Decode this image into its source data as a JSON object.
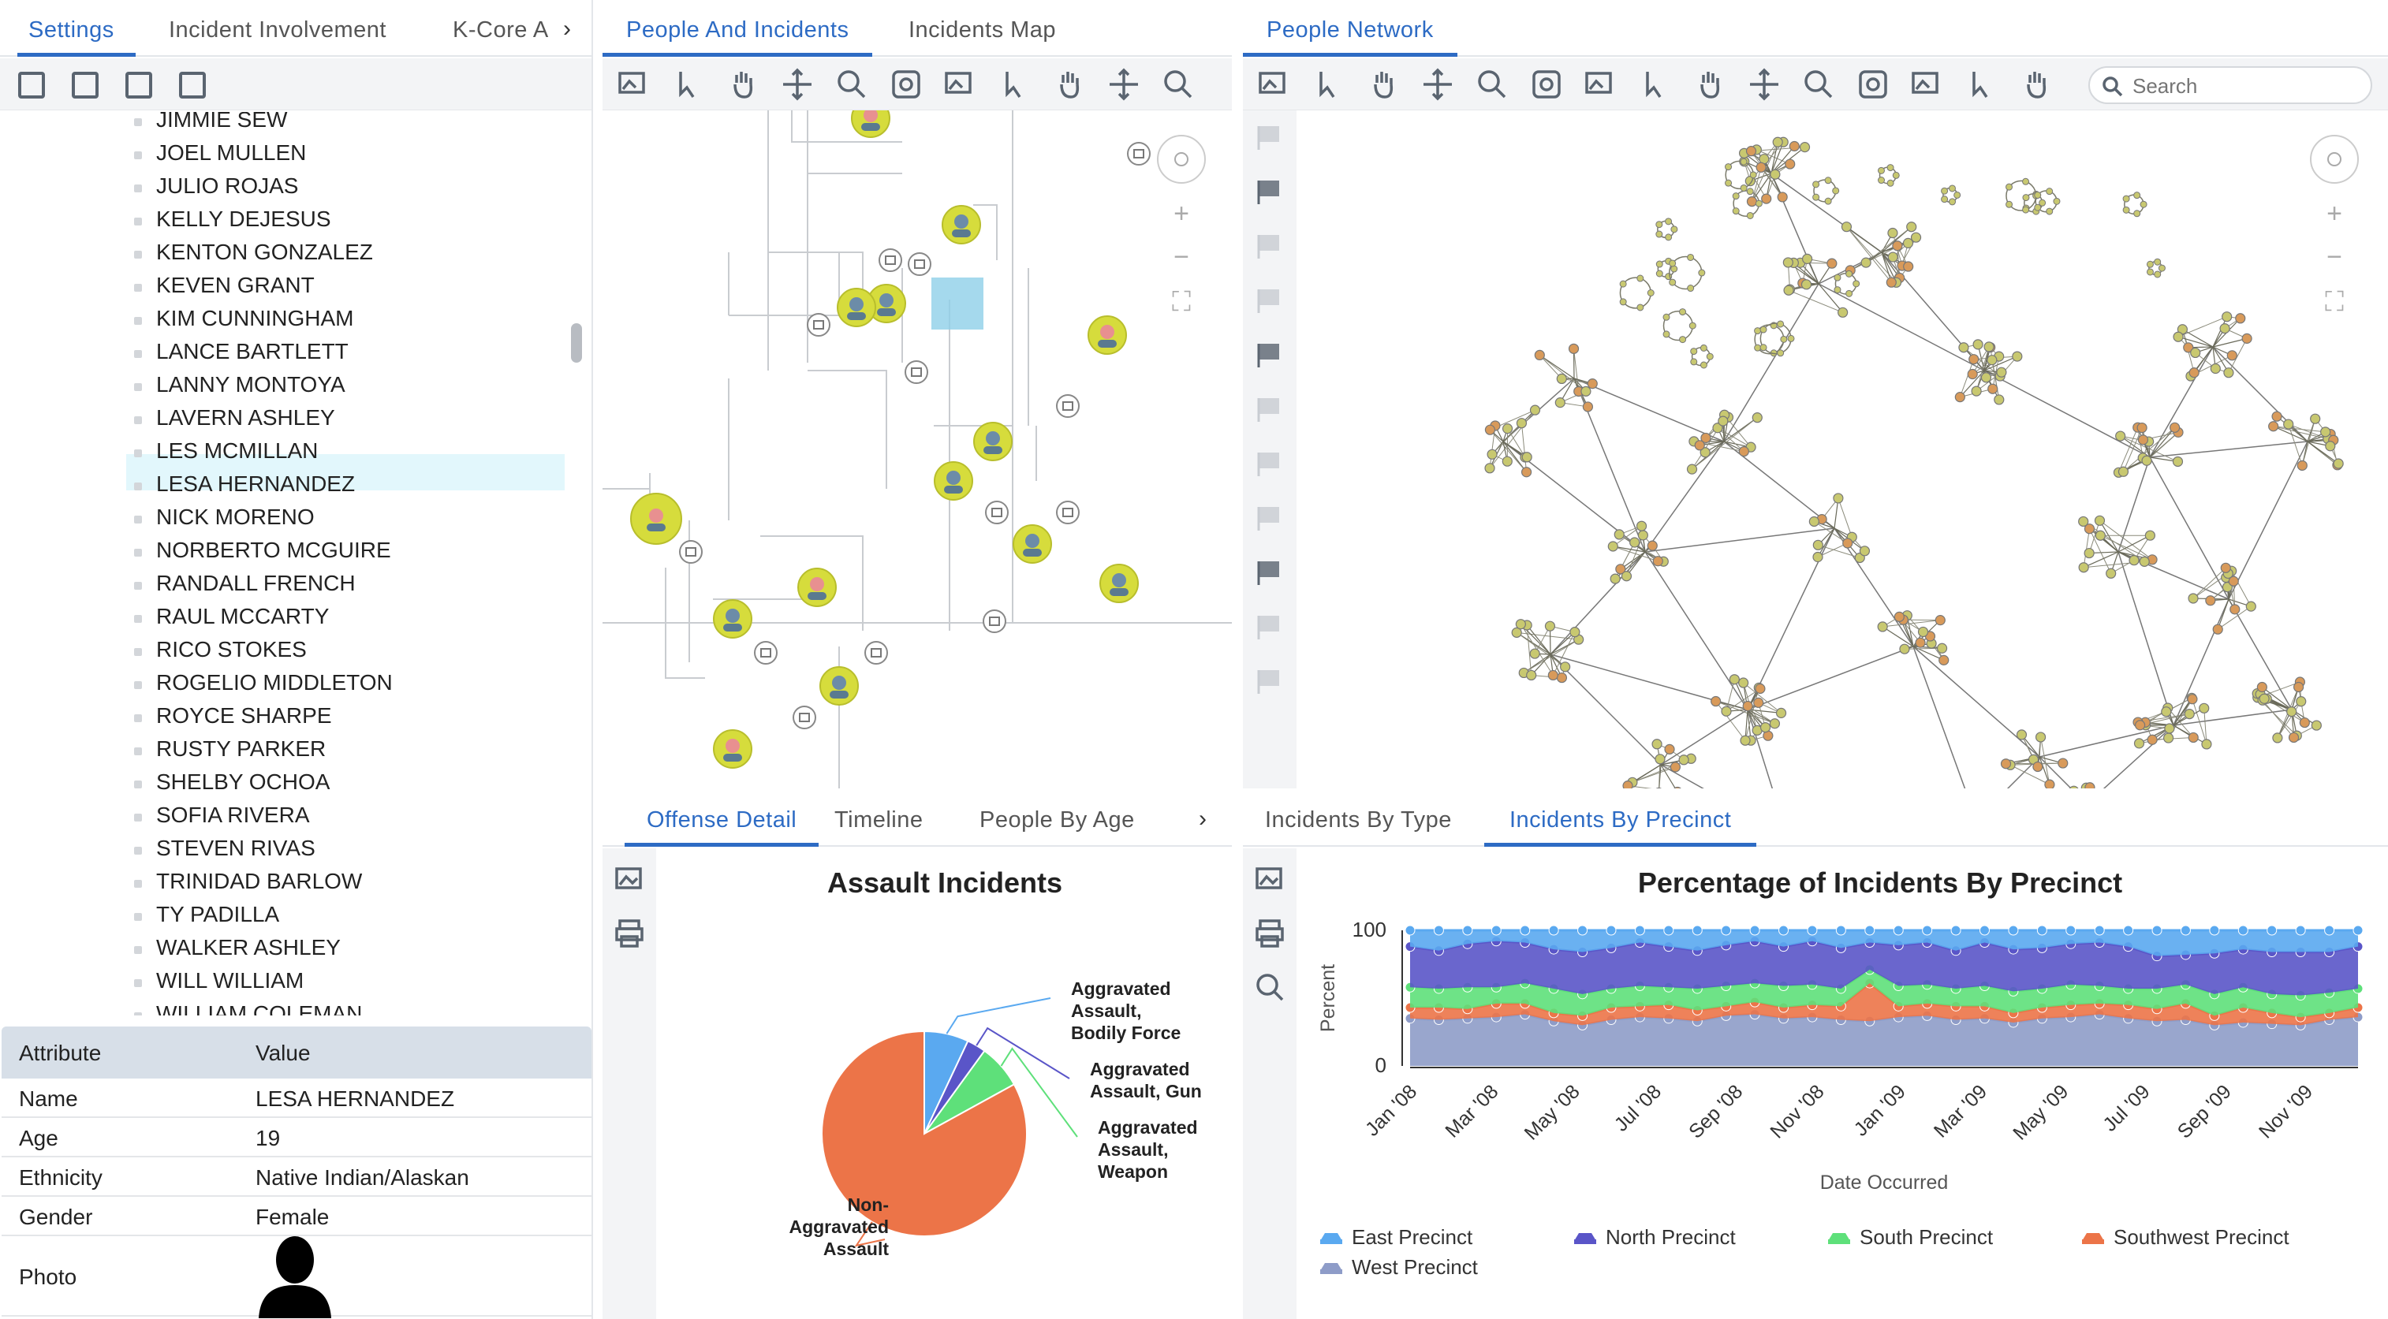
{
  "left_panel": {
    "tabs": [
      {
        "label": "Settings",
        "active": true
      },
      {
        "label": "Incident Involvement"
      },
      {
        "label": "K-Core A"
      }
    ],
    "people": [
      "JIMMIE SEW",
      "JOEL MULLEN",
      "JULIO ROJAS",
      "KELLY DEJESUS",
      "KENTON GONZALEZ",
      "KEVEN GRANT",
      "KIM CUNNINGHAM",
      "LANCE BARTLETT",
      "LANNY MONTOYA",
      "LAVERN ASHLEY",
      "LES MCMILLAN",
      "LESA HERNANDEZ",
      "NICK MORENO",
      "NORBERTO MCGUIRE",
      "RANDALL FRENCH",
      "RAUL MCCARTY",
      "RICO STOKES",
      "ROGELIO MIDDLETON",
      "ROYCE SHARPE",
      "RUSTY PARKER",
      "SHELBY OCHOA",
      "SOFIA RIVERA",
      "STEVEN RIVAS",
      "TRINIDAD BARLOW",
      "TY PADILLA",
      "WALKER ASHLEY",
      "WILL WILLIAM",
      "WILLIAM COLEMAN"
    ],
    "selected": "LESA HERNANDEZ",
    "attributes": {
      "header_attr": "Attribute",
      "header_val": "Value",
      "rows": [
        {
          "k": "Name",
          "v": "LESA HERNANDEZ"
        },
        {
          "k": "Age",
          "v": "19"
        },
        {
          "k": "Ethnicity",
          "v": "Native Indian/Alaskan"
        },
        {
          "k": "Gender",
          "v": "Female"
        },
        {
          "k": "Photo",
          "v": ""
        }
      ]
    }
  },
  "mid_panel": {
    "tabs": [
      {
        "label": "People And Incidents",
        "active": true
      },
      {
        "label": "Incidents Map"
      }
    ]
  },
  "right_panel": {
    "tabs": [
      {
        "label": "People Network",
        "active": true
      }
    ],
    "search_placeholder": "Search"
  },
  "bottom_mid": {
    "tabs": [
      {
        "label": "Offense Detail",
        "active": true
      },
      {
        "label": "Timeline"
      },
      {
        "label": "People By Age"
      }
    ],
    "chart_data": {
      "type": "pie",
      "title": "Assault Incidents",
      "slices": [
        {
          "label": "Aggravated Assault, Bodily Force",
          "value": 7,
          "color": "#5aa9f0"
        },
        {
          "label": "Aggravated Assault, Gun",
          "value": 3,
          "color": "#5a55c8"
        },
        {
          "label": "Aggravated Assault, Weapon",
          "value": 7,
          "color": "#5ee07a"
        },
        {
          "label": "Non-Aggravated Assault",
          "value": 83,
          "color": "#ec7448"
        }
      ],
      "labels_display": [
        [
          "Aggravated",
          "Assault,",
          "Bodily Force"
        ],
        [
          "Aggravated",
          "Assault, Gun"
        ],
        [
          "Aggravated",
          "Assault,",
          "Weapon"
        ],
        [
          "Non-",
          "Aggravated",
          "Assault"
        ]
      ]
    }
  },
  "bottom_right": {
    "tabs": [
      {
        "label": "Incidents By Type"
      },
      {
        "label": "Incidents By Precinct",
        "active": true
      }
    ],
    "chart_data": {
      "type": "area",
      "title": "Percentage of Incidents By Precinct",
      "xlabel": "Date Occurred",
      "ylabel": "Percent",
      "ylim": [
        0,
        100
      ],
      "yticks": [
        "0",
        "100"
      ],
      "xticks": [
        "Jan '08",
        "Mar '08",
        "May '08",
        "Jul '08",
        "Sep '08",
        "Nov '08",
        "Jan '09",
        "Mar '09",
        "May '09",
        "Jul '09",
        "Sep '09",
        "Nov '09"
      ],
      "series": [
        {
          "name": "West Precinct",
          "color": "#8e9cc8",
          "values": [
            35,
            34,
            35,
            36,
            38,
            33,
            30,
            34,
            36,
            35,
            33,
            37,
            38,
            35,
            36,
            34,
            33,
            36,
            37,
            34,
            35,
            32,
            35,
            36,
            38,
            35,
            33,
            34,
            30,
            32,
            31,
            30,
            34,
            36
          ]
        },
        {
          "name": "Southwest Precinct",
          "color": "#ec7448",
          "values": [
            8,
            9,
            7,
            10,
            8,
            6,
            7,
            9,
            8,
            10,
            8,
            7,
            9,
            8,
            9,
            10,
            28,
            8,
            9,
            10,
            9,
            7,
            8,
            9,
            8,
            10,
            9,
            12,
            7,
            11,
            8,
            6,
            5,
            7
          ]
        },
        {
          "name": "South Precinct",
          "color": "#5ee07a",
          "values": [
            15,
            14,
            16,
            12,
            15,
            18,
            16,
            14,
            15,
            13,
            16,
            15,
            14,
            16,
            15,
            13,
            10,
            15,
            14,
            13,
            15,
            16,
            14,
            15,
            13,
            12,
            15,
            14,
            16,
            15,
            14,
            16,
            15,
            14
          ]
        },
        {
          "name": "North Precinct",
          "color": "#5a55c8",
          "values": [
            30,
            28,
            32,
            34,
            30,
            29,
            31,
            30,
            32,
            30,
            28,
            30,
            31,
            29,
            32,
            30,
            20,
            30,
            31,
            28,
            32,
            31,
            30,
            30,
            32,
            31,
            24,
            22,
            30,
            28,
            31,
            32,
            30,
            31
          ]
        },
        {
          "name": "East Precinct",
          "color": "#5aa9f0",
          "values": [
            12,
            15,
            10,
            8,
            9,
            14,
            16,
            13,
            9,
            12,
            15,
            13,
            8,
            12,
            8,
            13,
            9,
            11,
            9,
            15,
            9,
            14,
            13,
            10,
            9,
            12,
            19,
            18,
            17,
            14,
            16,
            16,
            16,
            12
          ]
        }
      ],
      "legend": [
        "East Precinct",
        "North Precinct",
        "South Precinct",
        "Southwest Precinct",
        "West Precinct"
      ]
    }
  }
}
